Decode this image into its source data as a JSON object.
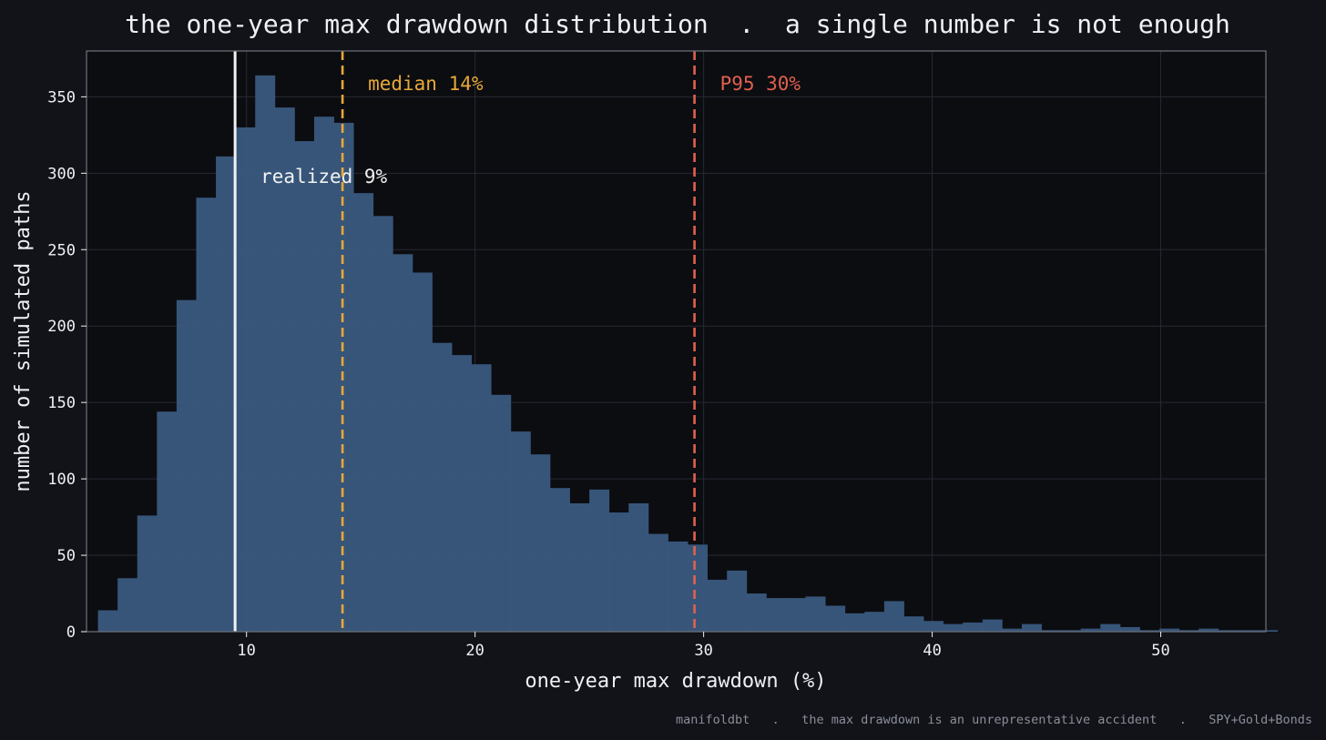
{
  "chart_data": {
    "type": "bar",
    "title": "the one-year max drawdown distribution  .  a single number is not enough",
    "xlabel": "one-year max drawdown (%)",
    "ylabel": "number of simulated paths",
    "xlim": [
      3.0,
      54.6
    ],
    "ylim": [
      0,
      380
    ],
    "bin_start": 3.5,
    "bin_width": 0.86,
    "counts": [
      14,
      35,
      76,
      144,
      217,
      284,
      311,
      330,
      364,
      343,
      321,
      337,
      333,
      287,
      272,
      247,
      235,
      189,
      181,
      175,
      155,
      131,
      116,
      94,
      84,
      93,
      78,
      84,
      64,
      59,
      57,
      34,
      40,
      25,
      22,
      22,
      23,
      17,
      12,
      13,
      20,
      10,
      7,
      5,
      6,
      8,
      2,
      5,
      1,
      1,
      2,
      5,
      3,
      1,
      2,
      1,
      2,
      1,
      1,
      1
    ],
    "xticks": [
      10,
      20,
      30,
      40,
      50
    ],
    "yticks": [
      0,
      50,
      100,
      150,
      200,
      250,
      300,
      350
    ],
    "grid": true,
    "bar_color": "#3a5a80",
    "reference_lines": [
      {
        "label": "realized 9%",
        "x": 9.5,
        "color": "#f2f2f2",
        "style": "solid"
      },
      {
        "label": "median 14%",
        "x": 14.2,
        "color": "#e8a838",
        "style": "dashed"
      },
      {
        "label": "P95 30%",
        "x": 29.6,
        "color": "#e0604e",
        "style": "dashed"
      }
    ]
  },
  "footer": "manifoldbt   .   the max drawdown is an unrepresentative accident   .   SPY+Gold+Bonds"
}
